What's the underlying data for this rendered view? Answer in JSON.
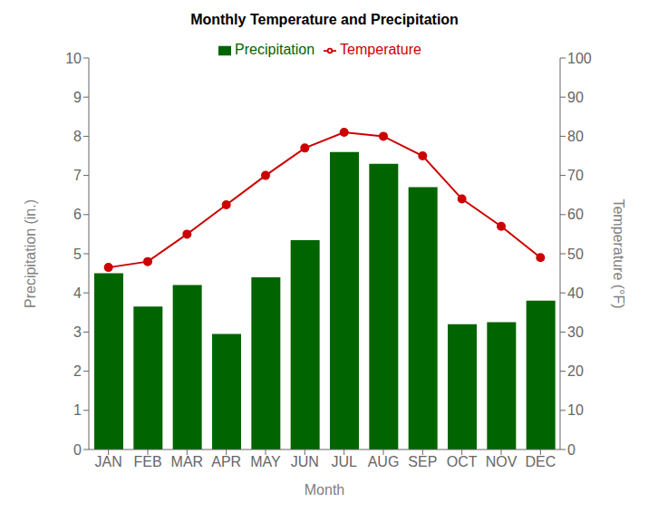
{
  "chart_data": {
    "type": "bar",
    "title": "Monthly Temperature and Precipitation",
    "categories": [
      "JAN",
      "FEB",
      "MAR",
      "APR",
      "MAY",
      "JUN",
      "JUL",
      "AUG",
      "SEP",
      "OCT",
      "NOV",
      "DEC"
    ],
    "xlabel": "Month",
    "ylabel": "Precipitation (in.)",
    "y2label": "Temperature (°F)",
    "series": [
      {
        "name": "Precipitation",
        "type": "bar",
        "color": "#006400",
        "values": [
          4.5,
          3.65,
          4.2,
          2.95,
          4.4,
          5.35,
          7.6,
          7.3,
          6.7,
          3.2,
          3.25,
          3.8
        ]
      },
      {
        "name": "Temperature",
        "type": "line",
        "color": "#CC0000",
        "marker": "circle",
        "axis": "y2",
        "values": [
          46.5,
          48,
          55,
          62.5,
          70,
          77,
          81,
          80,
          75,
          64,
          57,
          49
        ]
      }
    ],
    "ylim": [
      0,
      10
    ],
    "yticks": [
      0,
      1,
      2,
      3,
      4,
      5,
      6,
      7,
      8,
      9,
      10
    ],
    "y2lim": [
      0,
      100
    ],
    "y2ticks": [
      0,
      10,
      20,
      30,
      40,
      50,
      60,
      70,
      80,
      90,
      100
    ],
    "grid": false,
    "legend": "top"
  }
}
